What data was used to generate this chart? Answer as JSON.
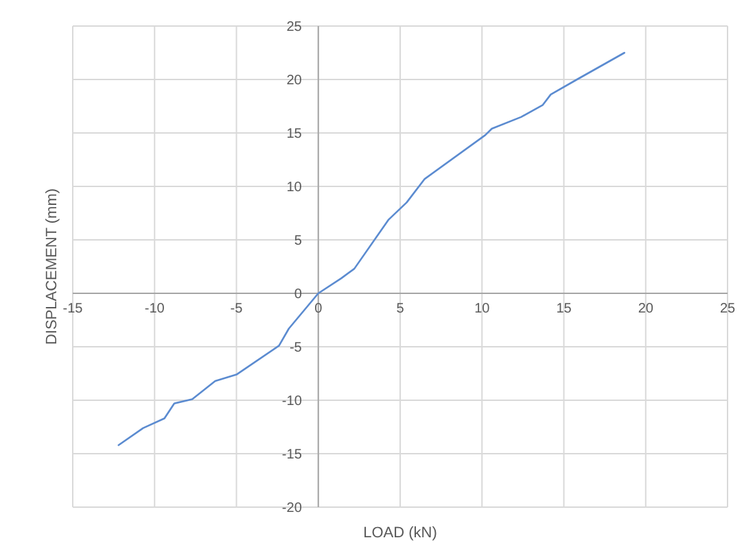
{
  "chart_data": {
    "type": "line",
    "xlabel": "LOAD (kN)",
    "ylabel": "DISPLACEMENT (mm)",
    "xlim": [
      -15,
      25
    ],
    "xticks": [
      -15,
      -10,
      -5,
      0,
      5,
      10,
      15,
      20,
      25
    ],
    "ylim": [
      -20,
      25
    ],
    "yticks": [
      -20,
      -15,
      -10,
      -5,
      0,
      5,
      10,
      15,
      20,
      25
    ],
    "grid": true,
    "marker": "none",
    "line_style": "solid",
    "series": [
      {
        "color": "#5b8bd0",
        "x": [
          -12.2,
          -10.7,
          -9.4,
          -8.8,
          -7.7,
          -6.3,
          -5.0,
          -2.4,
          -1.8,
          0,
          1.4,
          2.2,
          4.3,
          5.4,
          6.5,
          10.2,
          10.6,
          12.4,
          13.7,
          14.2,
          15.8,
          18.7
        ],
        "values": [
          -14.2,
          -12.6,
          -11.7,
          -10.3,
          -9.9,
          -8.2,
          -7.6,
          -4.9,
          -3.3,
          0,
          1.4,
          2.3,
          6.9,
          8.5,
          10.7,
          14.8,
          15.4,
          16.5,
          17.6,
          18.6,
          20.0,
          22.5
        ]
      }
    ]
  }
}
